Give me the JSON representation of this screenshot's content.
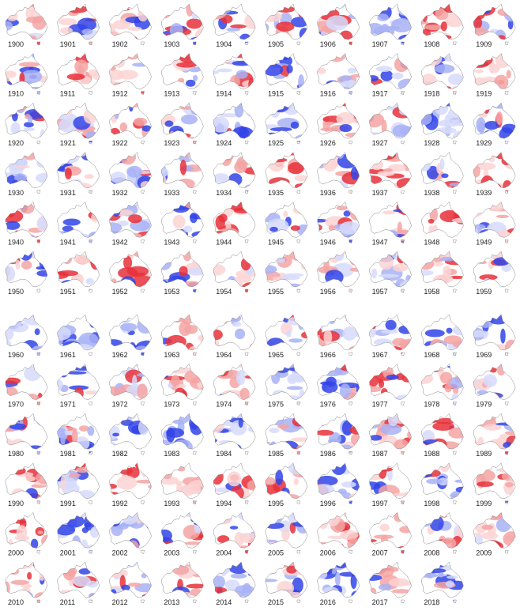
{
  "years": [
    "1900",
    "1901",
    "1902",
    "1903",
    "1904",
    "1905",
    "1906",
    "1907",
    "1908",
    "1909",
    "1910",
    "1911",
    "1912",
    "1913",
    "1914",
    "1915",
    "1916",
    "1917",
    "1918",
    "1919",
    "1920",
    "1921",
    "1922",
    "1923",
    "1924",
    "1925",
    "1926",
    "1927",
    "1928",
    "1929",
    "1930",
    "1931",
    "1932",
    "1933",
    "1934",
    "1935",
    "1936",
    "1937",
    "1938",
    "1939",
    "1940",
    "1941",
    "1942",
    "1943",
    "1944",
    "1945",
    "1946",
    "1947",
    "1948",
    "1949",
    "1950",
    "1951",
    "1952",
    "1953",
    "1954",
    "1955",
    "1956",
    "1957",
    "1958",
    "1959",
    "1960",
    "1961",
    "1962",
    "1963",
    "1964",
    "1965",
    "1966",
    "1967",
    "1968",
    "1969",
    "1970",
    "1971",
    "1972",
    "1973",
    "1974",
    "1975",
    "1976",
    "1977",
    "1978",
    "1979",
    "1980",
    "1981",
    "1982",
    "1983",
    "1984",
    "1985",
    "1986",
    "1987",
    "1988",
    "1989",
    "1990",
    "1991",
    "1992",
    "1993",
    "1994",
    "1995",
    "1996",
    "1997",
    "1998",
    "1999",
    "2000",
    "2001",
    "2002",
    "2003",
    "2004",
    "2005",
    "2006",
    "2007",
    "2008",
    "2009",
    "2010",
    "2011",
    "2012",
    "2013",
    "2014",
    "2015",
    "2016",
    "2017",
    "2018"
  ]
}
